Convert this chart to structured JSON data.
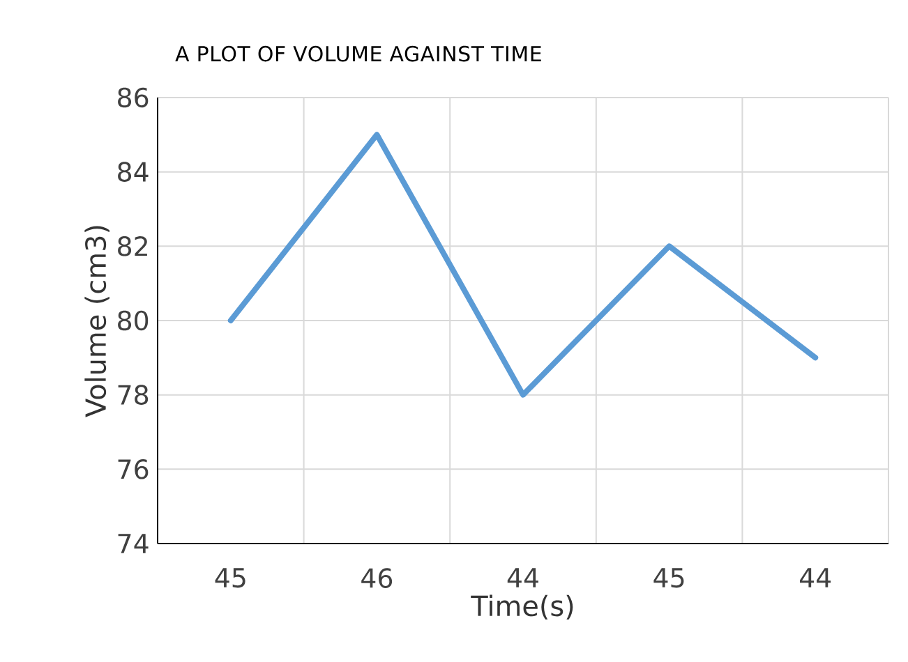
{
  "chart_data": {
    "type": "line",
    "title": "A PLOT OF VOLUME AGAINST TIME",
    "xlabel": "Time(s)",
    "ylabel": "Volume  (cm3)",
    "categories": [
      "45",
      "46",
      "44",
      "45",
      "44"
    ],
    "series": [
      {
        "color": "#5b9bd5",
        "values": [
          80,
          85,
          78,
          82,
          79
        ]
      }
    ],
    "ylim": [
      74,
      86
    ],
    "yticks": [
      74,
      76,
      78,
      80,
      82,
      84,
      86
    ],
    "grid": true,
    "marker": "none",
    "line_style": "solid"
  }
}
